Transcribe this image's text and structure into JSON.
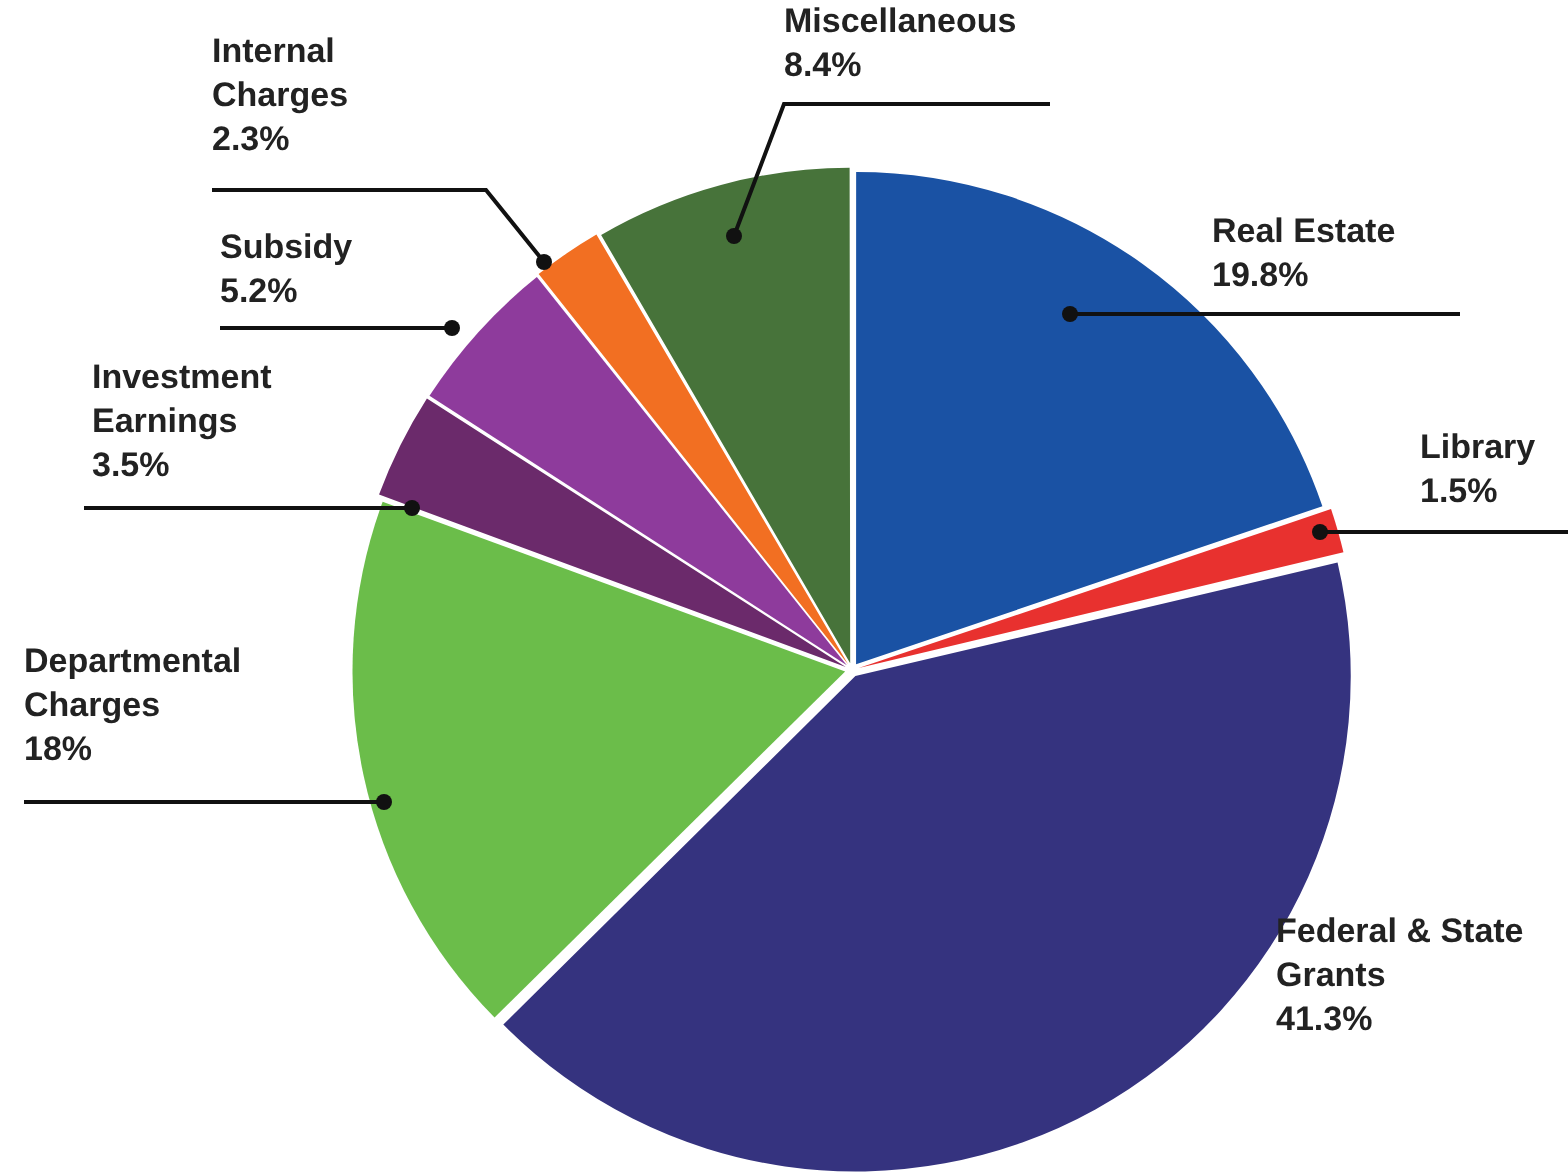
{
  "chart_data": {
    "type": "pie",
    "categories": [
      "Real Estate",
      "Library",
      "Federal & State Grants",
      "Departmental Charges",
      "Investment Earnings",
      "Subsidy",
      "Internal Charges",
      "Miscellaneous"
    ],
    "values": [
      19.8,
      1.5,
      41.3,
      18,
      3.5,
      5.2,
      2.3,
      8.4
    ],
    "value_labels": [
      "19.8%",
      "1.5%",
      "41.3%",
      "18%",
      "3.5%",
      "5.2%",
      "2.3%",
      "8.4%"
    ],
    "colors": [
      "#1a52a4",
      "#e8312f",
      "#35337f",
      "#6bbd4a",
      "#6b2a6b",
      "#8e3b9c",
      "#f26f22",
      "#47733a"
    ],
    "legend": false
  }
}
